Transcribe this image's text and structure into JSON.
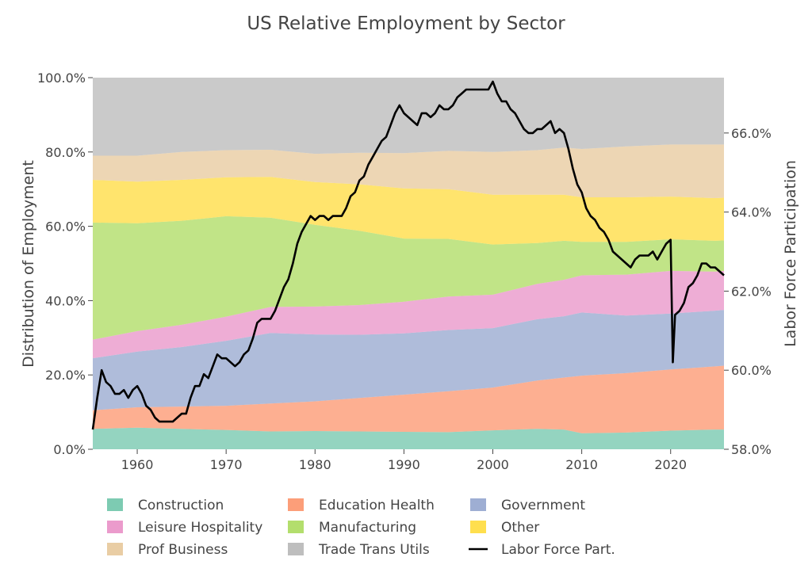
{
  "chart_data": {
    "type": "area",
    "title": "US Relative Employment by Sector",
    "xlabel": "",
    "ylabel": "Distribution of Employment",
    "y2label": "Labor Force Participation",
    "xlim": [
      1955,
      2026
    ],
    "ylim": [
      0,
      100
    ],
    "y2lim": [
      58,
      67.4
    ],
    "x_ticks": [
      1960,
      1970,
      1980,
      1990,
      2000,
      2010,
      2020
    ],
    "x_tick_labels": [
      "1960",
      "1970",
      "1980",
      "1990",
      "2000",
      "2010",
      "2020"
    ],
    "y_ticks": [
      0,
      20,
      40,
      60,
      80,
      100
    ],
    "y_tick_labels": [
      "0.0%",
      "20.0%",
      "40.0%",
      "60.0%",
      "80.0%",
      "100.0%"
    ],
    "y2_ticks": [
      58,
      60,
      62,
      64,
      66
    ],
    "y2_tick_labels": [
      "58.0%",
      "60.0%",
      "62.0%",
      "64.0%",
      "66.0%"
    ],
    "legend_position": "bottom",
    "x": [
      1955,
      1960,
      1965,
      1970,
      1975,
      1980,
      1985,
      1990,
      1995,
      2000,
      2005,
      2008,
      2010,
      2015,
      2020,
      2025,
      2026
    ],
    "series": [
      {
        "name": "Construction",
        "color": "#66c2a5",
        "values": [
          5.5,
          5.8,
          5.5,
          5.2,
          4.8,
          4.9,
          4.8,
          4.7,
          4.6,
          5.1,
          5.5,
          5.3,
          4.3,
          4.5,
          5.0,
          5.3,
          5.3
        ]
      },
      {
        "name": "Education Health",
        "color": "#fc8d62",
        "values": [
          5.0,
          5.5,
          6.0,
          6.5,
          7.5,
          8.0,
          9.0,
          10.0,
          11.0,
          11.5,
          13.0,
          14.0,
          15.5,
          16.0,
          16.5,
          17.0,
          17.2
        ]
      },
      {
        "name": "Government",
        "color": "#8da0cb",
        "values": [
          14.0,
          15.0,
          16.0,
          17.5,
          19.0,
          18.0,
          17.0,
          16.5,
          16.5,
          16.0,
          16.5,
          16.5,
          17.0,
          15.5,
          15.0,
          15.0,
          15.0
        ]
      },
      {
        "name": "Leisure Hospitality",
        "color": "#e78ac3",
        "values": [
          5.0,
          5.5,
          6.0,
          6.5,
          7.0,
          7.5,
          8.0,
          8.5,
          9.0,
          9.0,
          9.5,
          9.8,
          10.0,
          11.0,
          11.5,
          10.5,
          10.5
        ]
      },
      {
        "name": "Manufacturing",
        "color": "#a6d854",
        "values": [
          31.5,
          29.0,
          28.0,
          27.0,
          24.0,
          22.0,
          20.0,
          17.0,
          15.5,
          13.5,
          11.0,
          10.5,
          9.0,
          8.8,
          8.5,
          8.3,
          8.2
        ]
      },
      {
        "name": "Other",
        "color": "#ffd92f",
        "values": [
          11.5,
          11.2,
          11.0,
          10.5,
          11.0,
          11.5,
          12.5,
          13.5,
          13.4,
          13.4,
          13.0,
          12.4,
          12.0,
          12.0,
          11.5,
          11.5,
          11.5
        ]
      },
      {
        "name": "Prof Business",
        "color": "#e5c494",
        "values": [
          6.5,
          7.0,
          7.5,
          7.3,
          7.3,
          7.6,
          8.5,
          9.5,
          10.3,
          11.5,
          12.0,
          12.7,
          13.0,
          13.7,
          14.0,
          14.4,
          14.3
        ]
      },
      {
        "name": "Trade Trans Utils",
        "color": "#b3b3b3",
        "values": [
          21.0,
          21.0,
          20.0,
          19.5,
          19.4,
          20.5,
          20.2,
          20.3,
          19.7,
          20.0,
          19.5,
          18.8,
          19.2,
          18.5,
          18.0,
          18.0,
          18.0
        ]
      }
    ],
    "labor_force": {
      "name": "Labor Force Part.",
      "color": "#000000",
      "x": [
        1955.0,
        1955.5,
        1956.0,
        1956.5,
        1957.0,
        1957.5,
        1958.0,
        1958.5,
        1959.0,
        1959.5,
        1960.0,
        1960.5,
        1961.0,
        1961.5,
        1962.0,
        1962.5,
        1963.0,
        1963.5,
        1964.0,
        1964.5,
        1965.0,
        1965.5,
        1966.0,
        1966.5,
        1967.0,
        1967.5,
        1968.0,
        1968.5,
        1969.0,
        1969.5,
        1970.0,
        1970.5,
        1971.0,
        1971.5,
        1972.0,
        1972.5,
        1973.0,
        1973.5,
        1974.0,
        1974.5,
        1975.0,
        1975.5,
        1976.0,
        1976.5,
        1977.0,
        1977.5,
        1978.0,
        1978.5,
        1979.0,
        1979.5,
        1980.0,
        1980.5,
        1981.0,
        1981.5,
        1982.0,
        1982.5,
        1983.0,
        1983.5,
        1984.0,
        1984.5,
        1985.0,
        1985.5,
        1986.0,
        1986.5,
        1987.0,
        1987.5,
        1988.0,
        1988.5,
        1989.0,
        1989.5,
        1990.0,
        1990.5,
        1991.0,
        1991.5,
        1992.0,
        1992.5,
        1993.0,
        1993.5,
        1994.0,
        1994.5,
        1995.0,
        1995.5,
        1996.0,
        1996.5,
        1997.0,
        1997.5,
        1998.0,
        1998.5,
        1999.0,
        1999.5,
        2000.0,
        2000.5,
        2001.0,
        2001.5,
        2002.0,
        2002.5,
        2003.0,
        2003.5,
        2004.0,
        2004.5,
        2005.0,
        2005.5,
        2006.0,
        2006.5,
        2007.0,
        2007.5,
        2008.0,
        2008.5,
        2009.0,
        2009.5,
        2010.0,
        2010.5,
        2011.0,
        2011.5,
        2012.0,
        2012.5,
        2013.0,
        2013.5,
        2014.0,
        2014.5,
        2015.0,
        2015.5,
        2016.0,
        2016.5,
        2017.0,
        2017.5,
        2018.0,
        2018.5,
        2019.0,
        2019.5,
        2020.0,
        2020.25,
        2020.5,
        2021.0,
        2021.5,
        2022.0,
        2022.5,
        2023.0,
        2023.5,
        2024.0,
        2024.5,
        2025.0,
        2025.5,
        2026.0
      ],
      "values": [
        58.5,
        59.3,
        60.0,
        59.7,
        59.6,
        59.4,
        59.4,
        59.5,
        59.3,
        59.5,
        59.6,
        59.4,
        59.1,
        59.0,
        58.8,
        58.7,
        58.7,
        58.7,
        58.7,
        58.8,
        58.9,
        58.9,
        59.3,
        59.6,
        59.6,
        59.9,
        59.8,
        60.1,
        60.4,
        60.3,
        60.3,
        60.2,
        60.1,
        60.2,
        60.4,
        60.5,
        60.8,
        61.2,
        61.3,
        61.3,
        61.3,
        61.5,
        61.8,
        62.1,
        62.3,
        62.7,
        63.2,
        63.5,
        63.7,
        63.9,
        63.8,
        63.9,
        63.9,
        63.8,
        63.9,
        63.9,
        63.9,
        64.1,
        64.4,
        64.5,
        64.8,
        64.9,
        65.2,
        65.4,
        65.6,
        65.8,
        65.9,
        66.2,
        66.5,
        66.7,
        66.5,
        66.4,
        66.3,
        66.2,
        66.5,
        66.5,
        66.4,
        66.5,
        66.7,
        66.6,
        66.6,
        66.7,
        66.9,
        67.0,
        67.1,
        67.1,
        67.1,
        67.1,
        67.1,
        67.1,
        67.3,
        67.0,
        66.8,
        66.8,
        66.6,
        66.5,
        66.3,
        66.1,
        66.0,
        66.0,
        66.1,
        66.1,
        66.2,
        66.3,
        66.0,
        66.1,
        66.0,
        65.6,
        65.1,
        64.7,
        64.5,
        64.1,
        63.9,
        63.8,
        63.6,
        63.5,
        63.3,
        63.0,
        62.9,
        62.8,
        62.7,
        62.6,
        62.8,
        62.9,
        62.9,
        62.9,
        63.0,
        62.8,
        63.0,
        63.2,
        63.3,
        60.2,
        61.4,
        61.5,
        61.7,
        62.1,
        62.2,
        62.4,
        62.7,
        62.7,
        62.6,
        62.6,
        62.5,
        62.4
      ]
    }
  }
}
